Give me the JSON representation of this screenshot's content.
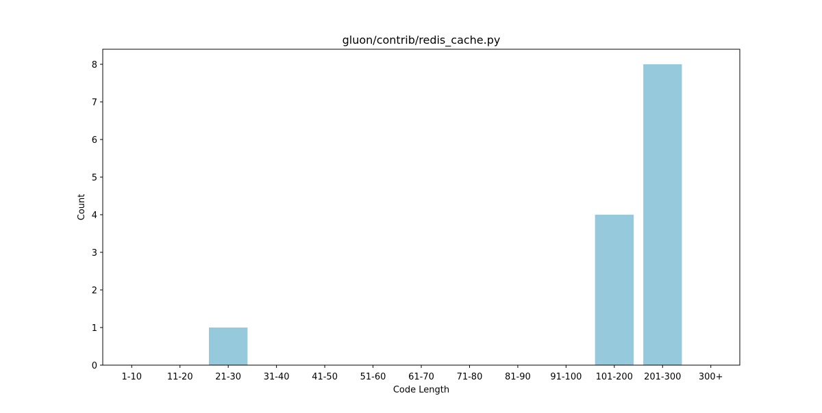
{
  "chart_data": {
    "type": "bar",
    "title": "gluon/contrib/redis_cache.py",
    "xlabel": "Code Length",
    "ylabel": "Count",
    "categories": [
      "1-10",
      "11-20",
      "21-30",
      "31-40",
      "41-50",
      "51-60",
      "61-70",
      "71-80",
      "81-90",
      "91-100",
      "101-200",
      "201-300",
      "300+"
    ],
    "values": [
      0,
      0,
      1,
      0,
      0,
      0,
      0,
      0,
      0,
      0,
      4,
      8,
      0
    ],
    "ylim": [
      0,
      8.4
    ],
    "yticks": [
      0,
      1,
      2,
      3,
      4,
      5,
      6,
      7,
      8
    ],
    "bar_color": "#96c9dc",
    "grid": false,
    "legend": "none"
  }
}
